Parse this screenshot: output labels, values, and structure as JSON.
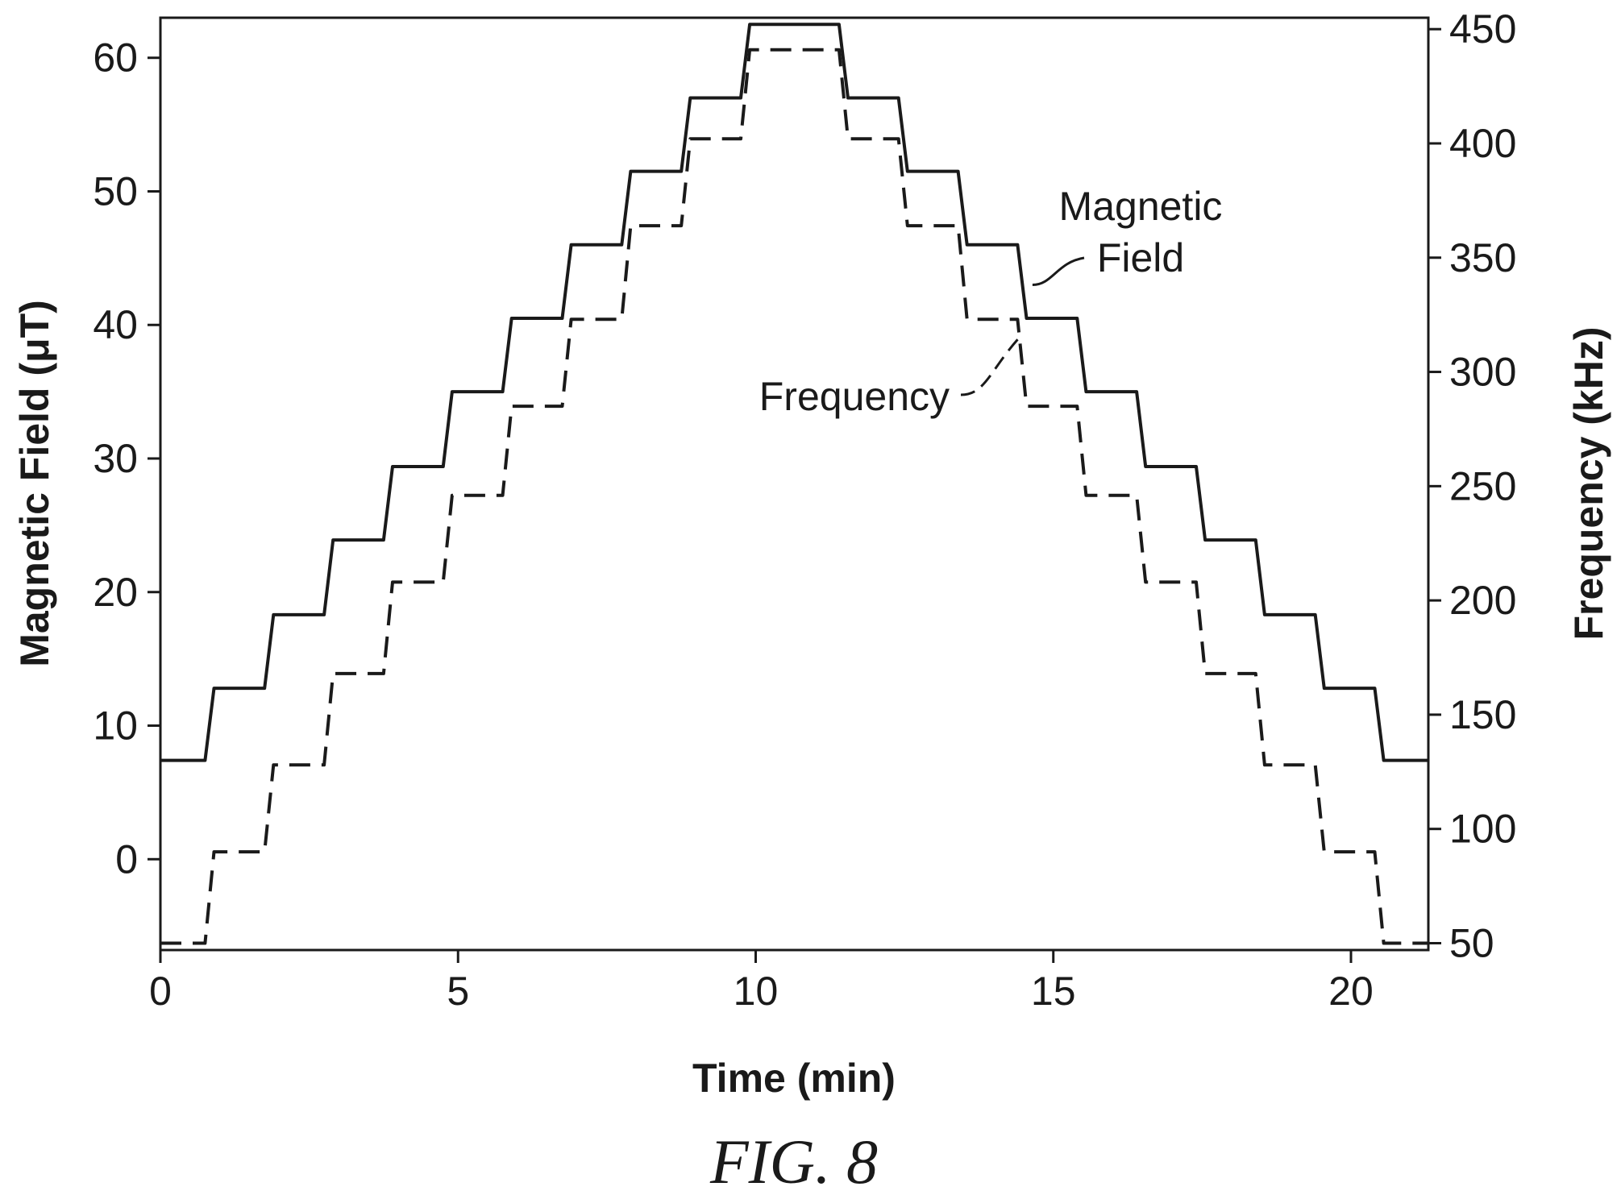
{
  "chart_data": {
    "type": "line",
    "xlabel": "Time (min)",
    "ylabel_left": "Magnetic Field (μT)",
    "ylabel_right": "Frequency (kHz)",
    "xlim": [
      0,
      21.3
    ],
    "ylim_left": [
      -6.8,
      63
    ],
    "ylim_right": [
      47,
      455
    ],
    "xticks": [
      0,
      5,
      10,
      15,
      20
    ],
    "yticks_left": [
      0,
      10,
      20,
      30,
      40,
      50,
      60
    ],
    "yticks_right": [
      50,
      100,
      150,
      200,
      250,
      300,
      350,
      400,
      450
    ],
    "grid": false,
    "caption": "FIG. 8",
    "series": [
      {
        "name": "Magnetic Field",
        "axis": "left",
        "style": "solid",
        "color": "#1a1a1a",
        "x": [
          0,
          0.75,
          0.9,
          1.75,
          1.9,
          2.75,
          2.9,
          3.75,
          3.9,
          4.75,
          4.9,
          5.75,
          5.9,
          6.75,
          6.9,
          7.75,
          7.9,
          8.75,
          8.9,
          9.75,
          9.9,
          11.4,
          11.55,
          12.4,
          12.55,
          13.4,
          13.55,
          14.4,
          14.55,
          15.4,
          15.55,
          16.4,
          16.55,
          17.4,
          17.55,
          18.4,
          18.55,
          19.4,
          19.55,
          20.4,
          20.55,
          21.3
        ],
        "y": [
          7.4,
          7.4,
          12.8,
          12.8,
          18.3,
          18.3,
          23.9,
          23.9,
          29.4,
          29.4,
          35.0,
          35.0,
          40.5,
          40.5,
          46.0,
          46.0,
          51.5,
          51.5,
          57.0,
          57.0,
          62.5,
          62.5,
          57.0,
          57.0,
          51.5,
          51.5,
          46.0,
          46.0,
          40.5,
          40.5,
          35.0,
          35.0,
          29.4,
          29.4,
          23.9,
          23.9,
          18.3,
          18.3,
          12.8,
          12.8,
          7.4,
          7.4
        ]
      },
      {
        "name": "Frequency",
        "axis": "right",
        "style": "dashed",
        "color": "#1a1a1a",
        "x": [
          0,
          0.75,
          0.9,
          1.75,
          1.9,
          2.75,
          2.9,
          3.75,
          3.9,
          4.75,
          4.9,
          5.75,
          5.9,
          6.75,
          6.9,
          7.75,
          7.9,
          8.75,
          8.9,
          9.75,
          9.9,
          11.4,
          11.55,
          12.4,
          12.55,
          13.4,
          13.55,
          14.4,
          14.55,
          15.4,
          15.55,
          16.4,
          16.55,
          17.4,
          17.55,
          18.4,
          18.55,
          19.4,
          19.55,
          20.4,
          20.55,
          21.3
        ],
        "y": [
          50,
          50,
          90,
          90,
          128,
          128,
          168,
          168,
          208,
          208,
          246,
          246,
          285,
          285,
          323,
          323,
          364,
          364,
          402,
          402,
          441,
          441,
          402,
          402,
          364,
          364,
          323,
          323,
          285,
          285,
          246,
          246,
          208,
          208,
          168,
          168,
          128,
          128,
          90,
          90,
          50,
          50
        ]
      }
    ],
    "annotations": [
      {
        "text": [
          "Magnetic",
          "Field"
        ],
        "target_series": "Magnetic Field",
        "target_x": 14.65,
        "target_y": 43.0
      },
      {
        "text": [
          "Frequency"
        ],
        "target_series": "Frequency",
        "target_x": 14.4,
        "target_y": 315
      }
    ]
  }
}
